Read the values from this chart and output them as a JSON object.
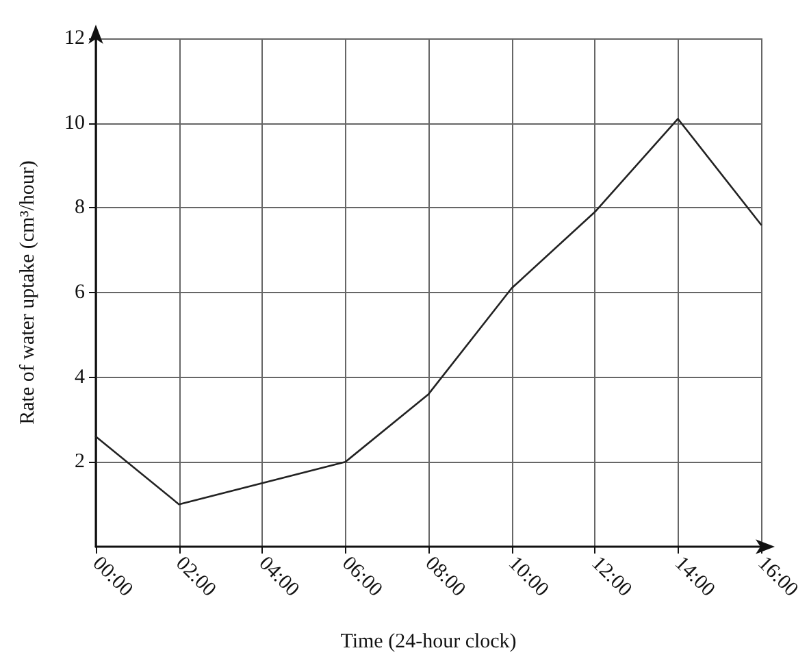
{
  "chart_data": {
    "type": "line",
    "xlabel": "Time (24-hour clock)",
    "ylabel": "Rate of water uptake (cm³/hour)",
    "x": [
      0,
      2,
      6,
      8,
      10,
      12,
      14,
      16
    ],
    "series": [
      {
        "color": "#222222",
        "values": [
          2.6,
          1.0,
          2.0,
          3.6,
          6.1,
          7.9,
          10.1,
          7.6
        ]
      }
    ],
    "xlim": [
      0,
      16
    ],
    "xticks": [
      {
        "value": 0,
        "label": "00:00"
      },
      {
        "value": 2,
        "label": "02:00"
      },
      {
        "value": 4,
        "label": "04:00"
      },
      {
        "value": 6,
        "label": "06:00"
      },
      {
        "value": 8,
        "label": "08:00"
      },
      {
        "value": 10,
        "label": "10:00"
      },
      {
        "value": 12,
        "label": "12:00"
      },
      {
        "value": 14,
        "label": "14:00"
      },
      {
        "value": 16,
        "label": "16:00"
      }
    ],
    "ylim": [
      0,
      12
    ],
    "yticks": [
      2,
      4,
      6,
      8,
      10,
      12
    ],
    "grid": true,
    "marker": "none",
    "line_style": "solid"
  }
}
